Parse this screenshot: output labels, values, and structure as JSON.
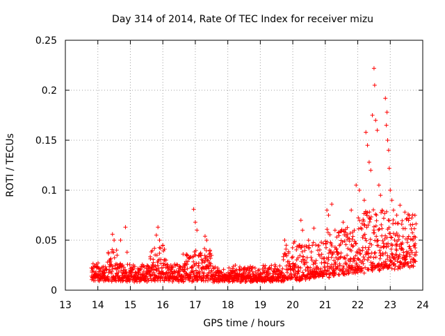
{
  "chart_data": {
    "type": "scatter",
    "title": "Day 314 of 2014, Rate Of TEC Index for receiver mizu",
    "xlabel": "GPS time / hours",
    "ylabel": "ROTI / TECUs",
    "xlim": [
      13,
      24
    ],
    "ylim": [
      0,
      0.25
    ],
    "x_ticks": [
      13,
      14,
      15,
      16,
      17,
      18,
      19,
      20,
      21,
      22,
      23,
      24
    ],
    "x_tick_labels": [
      "13",
      "14",
      "15",
      "16",
      "17",
      "18",
      "19",
      "20",
      "21",
      "22",
      "23",
      "24"
    ],
    "y_ticks": [
      0,
      0.05,
      0.1,
      0.15,
      0.2,
      0.25
    ],
    "y_tick_labels": [
      "0",
      "0.05",
      "0.1",
      "0.15",
      "0.2",
      "0.25"
    ],
    "grid": true,
    "marker": "plus",
    "series": [
      {
        "name": "ROTI",
        "color": "#ff0000",
        "x_range": [
          13.8,
          23.8
        ],
        "points": [
          [
            14.45,
            0.056
          ],
          [
            14.5,
            0.05
          ],
          [
            14.7,
            0.05
          ],
          [
            14.85,
            0.063
          ],
          [
            14.9,
            0.038
          ],
          [
            15.85,
            0.063
          ],
          [
            15.8,
            0.055
          ],
          [
            15.9,
            0.05
          ],
          [
            16.0,
            0.045
          ],
          [
            16.1,
            0.03
          ],
          [
            16.95,
            0.081
          ],
          [
            17.0,
            0.068
          ],
          [
            17.05,
            0.06
          ],
          [
            17.3,
            0.054
          ],
          [
            17.35,
            0.05
          ],
          [
            17.45,
            0.04
          ],
          [
            19.75,
            0.05
          ],
          [
            19.8,
            0.045
          ],
          [
            20.25,
            0.07
          ],
          [
            20.3,
            0.06
          ],
          [
            20.65,
            0.062
          ],
          [
            21.05,
            0.08
          ],
          [
            21.1,
            0.075
          ],
          [
            21.2,
            0.086
          ],
          [
            21.3,
            0.06
          ],
          [
            21.55,
            0.068
          ],
          [
            21.8,
            0.08
          ],
          [
            21.95,
            0.105
          ],
          [
            22.05,
            0.1
          ],
          [
            22.2,
            0.09
          ],
          [
            22.25,
            0.158
          ],
          [
            22.3,
            0.145
          ],
          [
            22.35,
            0.128
          ],
          [
            22.4,
            0.12
          ],
          [
            22.45,
            0.175
          ],
          [
            22.5,
            0.222
          ],
          [
            22.52,
            0.205
          ],
          [
            22.55,
            0.17
          ],
          [
            22.6,
            0.16
          ],
          [
            22.65,
            0.105
          ],
          [
            22.7,
            0.095
          ],
          [
            22.75,
            0.08
          ],
          [
            22.8,
            0.072
          ],
          [
            22.85,
            0.192
          ],
          [
            22.88,
            0.165
          ],
          [
            22.9,
            0.178
          ],
          [
            22.92,
            0.15
          ],
          [
            22.95,
            0.14
          ],
          [
            22.97,
            0.122
          ],
          [
            23.0,
            0.1
          ],
          [
            23.05,
            0.09
          ],
          [
            23.1,
            0.08
          ],
          [
            23.2,
            0.075
          ],
          [
            23.3,
            0.085
          ],
          [
            23.45,
            0.078
          ],
          [
            23.55,
            0.076
          ],
          [
            23.7,
            0.05
          ],
          [
            23.75,
            0.045
          ]
        ]
      }
    ]
  }
}
